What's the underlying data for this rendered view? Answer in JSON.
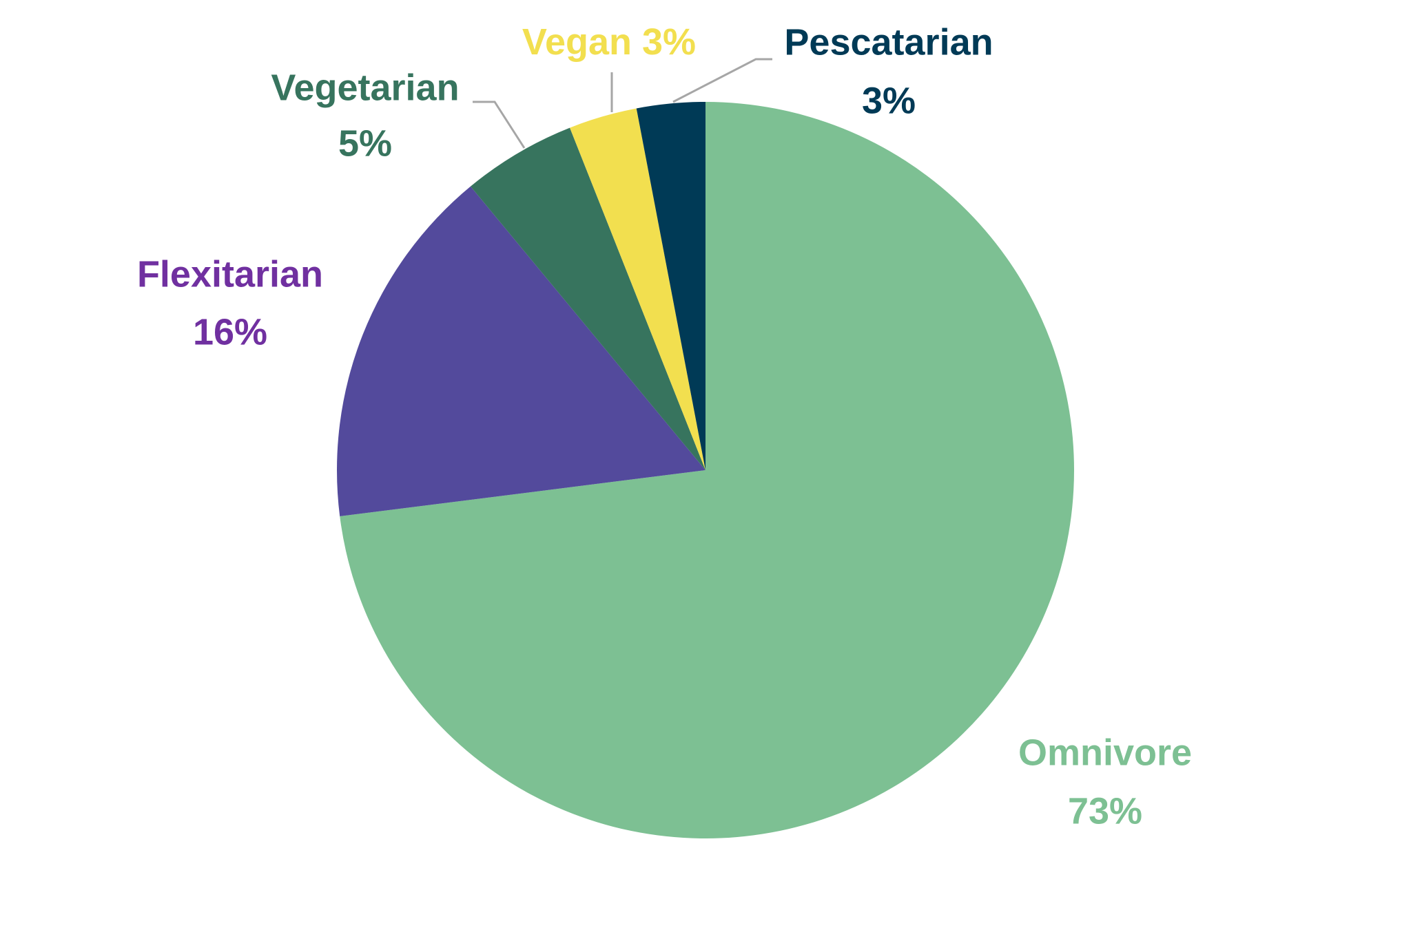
{
  "chart_data": {
    "type": "pie",
    "categories": [
      "Omnivore",
      "Flexitarian",
      "Vegetarian",
      "Vegan",
      "Pescatarian"
    ],
    "values": [
      73,
      16,
      5,
      3,
      3
    ],
    "value_labels": [
      "73%",
      "16%",
      "5%",
      "3%",
      "3%"
    ],
    "colors": [
      "#7dc093",
      "#534a9c",
      "#37745e",
      "#f2df4f",
      "#003a56"
    ],
    "label_colors": [
      "#7dc093",
      "#7030a0",
      "#37745e",
      "#f2df4f",
      "#003a56"
    ]
  }
}
